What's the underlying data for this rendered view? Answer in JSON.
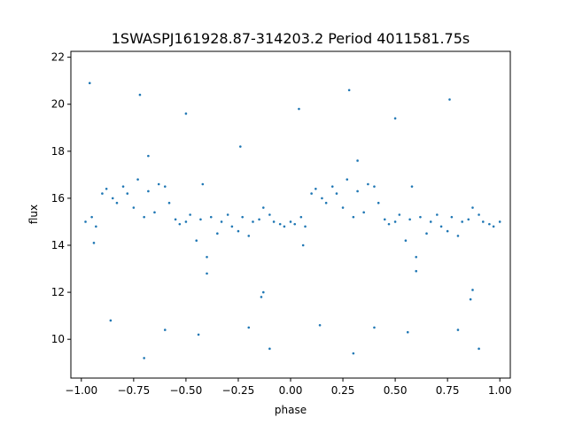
{
  "chart_data": {
    "type": "scatter",
    "title": "1SWASPJ161928.87-314203.2 Period 4011581.75s",
    "xlabel": "phase",
    "ylabel": "flux",
    "xlim": [
      -1.05,
      1.05
    ],
    "ylim": [
      8.35,
      22.25
    ],
    "grid": false,
    "x_ticks": [
      -1.0,
      -0.75,
      -0.5,
      -0.25,
      0.0,
      0.25,
      0.5,
      0.75,
      1.0
    ],
    "x_tick_labels": [
      "−1.00",
      "−0.75",
      "−0.50",
      "−0.25",
      "0.00",
      "0.25",
      "0.50",
      "0.75",
      "1.00"
    ],
    "y_ticks": [
      10,
      12,
      14,
      16,
      18,
      20,
      22
    ],
    "y_tick_labels": [
      "10",
      "12",
      "14",
      "16",
      "18",
      "20",
      "22"
    ],
    "point_color": "#1f77b4",
    "x": [
      -0.98,
      -0.95,
      -0.93,
      -0.9,
      -0.88,
      -0.85,
      -0.83,
      -0.8,
      -0.78,
      -0.75,
      -0.73,
      -0.7,
      -0.68,
      -0.65,
      -0.63,
      -0.6,
      -0.58,
      -0.55,
      -0.53,
      -0.5,
      -0.48,
      -0.45,
      -0.43,
      -0.4,
      -0.38,
      -0.35,
      -0.33,
      -0.3,
      -0.28,
      -0.25,
      -0.23,
      -0.2,
      -0.18,
      -0.15,
      -0.13,
      -0.1,
      -0.08,
      -0.05,
      -0.03,
      0.0,
      0.02,
      0.05,
      0.07,
      0.1,
      0.12,
      0.15,
      0.17,
      0.2,
      0.22,
      0.25,
      0.27,
      0.3,
      0.32,
      0.35,
      0.37,
      0.4,
      0.42,
      0.45,
      0.47,
      0.5,
      0.52,
      0.55,
      0.57,
      0.6,
      0.62,
      0.65,
      0.67,
      0.7,
      0.72,
      0.75,
      0.77,
      0.8,
      0.82,
      0.85,
      0.87,
      0.9,
      0.92,
      0.95,
      0.97,
      1.0,
      -0.94,
      -0.86,
      -0.7,
      -0.6,
      -0.44,
      -0.4,
      -0.2,
      -0.14,
      -0.1,
      0.06,
      0.14,
      0.3,
      0.4,
      0.56,
      0.6,
      0.8,
      0.86,
      0.9,
      -0.68,
      -0.42,
      -0.13,
      0.32,
      0.58,
      0.87,
      -0.96,
      -0.72,
      -0.5,
      -0.24,
      0.04,
      0.28,
      0.5,
      0.76
    ],
    "y": [
      15.0,
      15.2,
      14.8,
      16.2,
      16.4,
      16.0,
      15.8,
      16.5,
      16.2,
      15.6,
      16.8,
      15.2,
      16.3,
      15.4,
      16.6,
      16.5,
      15.8,
      15.1,
      14.9,
      15.0,
      15.3,
      14.2,
      15.1,
      13.5,
      15.2,
      14.5,
      15.0,
      15.3,
      14.8,
      14.6,
      15.2,
      14.4,
      15.0,
      15.1,
      15.6,
      15.3,
      15.0,
      14.9,
      14.8,
      15.0,
      14.9,
      15.2,
      14.8,
      16.2,
      16.4,
      16.0,
      15.8,
      16.5,
      16.2,
      15.6,
      16.8,
      15.2,
      16.3,
      15.4,
      16.6,
      16.5,
      15.8,
      15.1,
      14.9,
      15.0,
      15.3,
      14.2,
      15.1,
      13.5,
      15.2,
      14.5,
      15.0,
      15.3,
      14.8,
      14.6,
      15.2,
      14.4,
      15.0,
      15.1,
      15.6,
      15.3,
      15.0,
      14.9,
      14.8,
      15.0,
      14.1,
      10.8,
      9.2,
      10.4,
      10.2,
      12.8,
      10.5,
      11.8,
      9.6,
      14.0,
      10.6,
      9.4,
      10.5,
      10.3,
      12.9,
      10.4,
      11.7,
      9.6,
      17.8,
      16.6,
      12.0,
      17.6,
      16.5,
      12.1,
      20.9,
      20.4,
      19.6,
      18.2,
      19.8,
      20.6,
      19.4,
      20.2
    ]
  }
}
